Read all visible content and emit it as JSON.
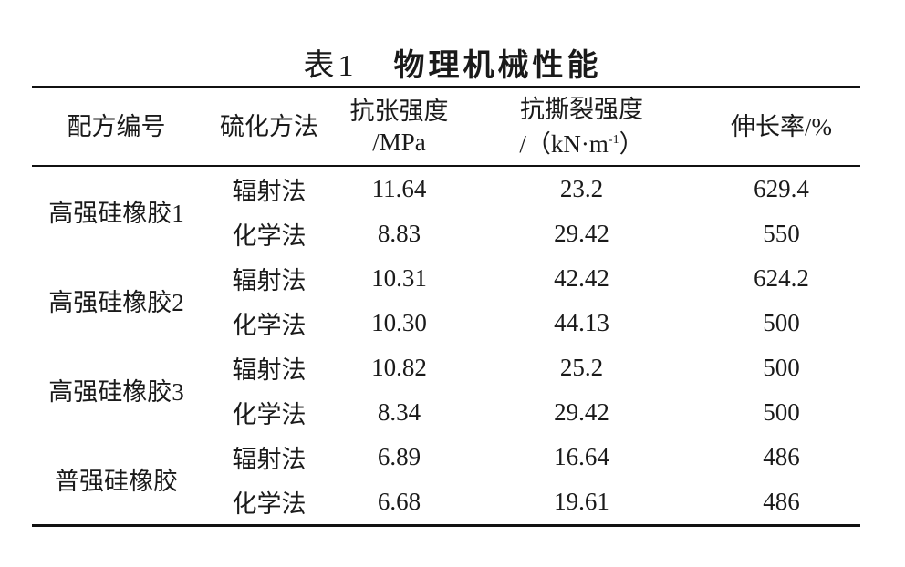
{
  "title": {
    "number": "表1",
    "text": "物理机械性能"
  },
  "headers": {
    "formulation": "配方编号",
    "method": "硫化方法",
    "tensile": {
      "line1": "抗张强度",
      "line2": "/MPa"
    },
    "tear": {
      "line1": "抗撕裂强度",
      "line2_prefix": "/（kN·m",
      "line2_sup": "-1",
      "line2_suffix": "）"
    },
    "elongation": "伸长率/%"
  },
  "groups": [
    {
      "name": "高强硅橡胶1",
      "rows": [
        {
          "method": "辐射法",
          "tensile": "11.64",
          "tear": "23.2",
          "elongation": "629.4"
        },
        {
          "method": "化学法",
          "tensile": "8.83",
          "tear": "29.42",
          "elongation": "550"
        }
      ]
    },
    {
      "name": "高强硅橡胶2",
      "rows": [
        {
          "method": "辐射法",
          "tensile": "10.31",
          "tear": "42.42",
          "elongation": "624.2"
        },
        {
          "method": "化学法",
          "tensile": "10.30",
          "tear": "44.13",
          "elongation": "500"
        }
      ]
    },
    {
      "name": "高强硅橡胶3",
      "rows": [
        {
          "method": "辐射法",
          "tensile": "10.82",
          "tear": "25.2",
          "elongation": "500"
        },
        {
          "method": "化学法",
          "tensile": "8.34",
          "tear": "29.42",
          "elongation": "500"
        }
      ]
    },
    {
      "name": "普强硅橡胶",
      "rows": [
        {
          "method": "辐射法",
          "tensile": "6.89",
          "tear": "16.64",
          "elongation": "486"
        },
        {
          "method": "化学法",
          "tensile": "6.68",
          "tear": "19.61",
          "elongation": "486"
        }
      ]
    }
  ]
}
